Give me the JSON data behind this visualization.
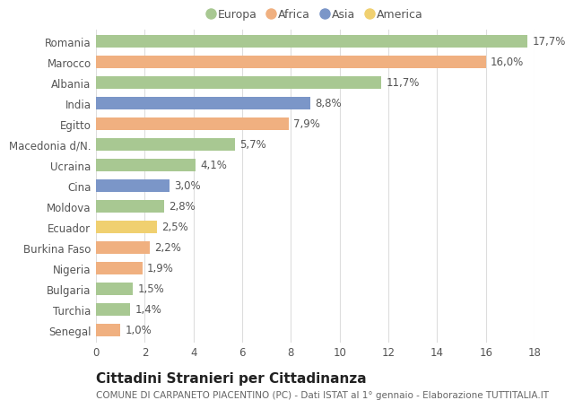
{
  "countries": [
    "Romania",
    "Marocco",
    "Albania",
    "India",
    "Egitto",
    "Macedonia d/N.",
    "Ucraina",
    "Cina",
    "Moldova",
    "Ecuador",
    "Burkina Faso",
    "Nigeria",
    "Bulgaria",
    "Turchia",
    "Senegal"
  ],
  "values": [
    17.7,
    16.0,
    11.7,
    8.8,
    7.9,
    5.7,
    4.1,
    3.0,
    2.8,
    2.5,
    2.2,
    1.9,
    1.5,
    1.4,
    1.0
  ],
  "labels": [
    "17,7%",
    "16,0%",
    "11,7%",
    "8,8%",
    "7,9%",
    "5,7%",
    "4,1%",
    "3,0%",
    "2,8%",
    "2,5%",
    "2,2%",
    "1,9%",
    "1,5%",
    "1,4%",
    "1,0%"
  ],
  "continents": [
    "Europa",
    "Africa",
    "Europa",
    "Asia",
    "Africa",
    "Europa",
    "Europa",
    "Asia",
    "Europa",
    "America",
    "Africa",
    "Africa",
    "Europa",
    "Europa",
    "Africa"
  ],
  "continent_colors": {
    "Europa": "#a8c892",
    "Africa": "#f0b080",
    "Asia": "#7b96c8",
    "America": "#f0d070"
  },
  "legend_order": [
    "Europa",
    "Africa",
    "Asia",
    "America"
  ],
  "title": "Cittadini Stranieri per Cittadinanza",
  "subtitle": "COMUNE DI CARPANETO PIACENTINO (PC) - Dati ISTAT al 1° gennaio - Elaborazione TUTTITALIA.IT",
  "xlim": [
    0,
    18
  ],
  "xticks": [
    0,
    2,
    4,
    6,
    8,
    10,
    12,
    14,
    16,
    18
  ],
  "background_color": "#ffffff",
  "grid_color": "#dddddd",
  "bar_height": 0.6,
  "label_fontsize": 8.5,
  "tick_fontsize": 8.5,
  "title_fontsize": 11,
  "subtitle_fontsize": 7.5
}
